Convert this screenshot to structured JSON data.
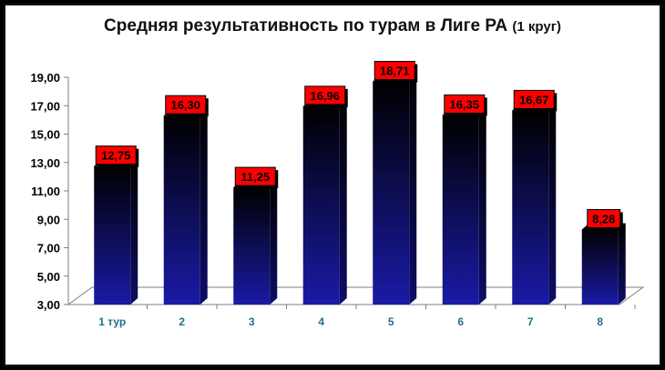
{
  "chart_data": {
    "type": "bar",
    "title": "Средняя результативность по турам в Лиге РА",
    "subtitle": "(1 круг)",
    "categories": [
      "1 тур",
      "2",
      "3",
      "4",
      "5",
      "6",
      "7",
      "8"
    ],
    "values": [
      12.75,
      16.3,
      11.25,
      16.96,
      18.71,
      16.35,
      16.67,
      8.28
    ],
    "data_labels": [
      "12,75",
      "16,30",
      "11,25",
      "16,96",
      "18,71",
      "16,35",
      "16,67",
      "8,28"
    ],
    "ylim": [
      3,
      19
    ],
    "yticks": [
      "3,00",
      "5,00",
      "7,00",
      "9,00",
      "11,00",
      "13,00",
      "15,00",
      "17,00",
      "19,00"
    ],
    "xlabel": "",
    "ylabel": "",
    "grid": false,
    "legend": "none",
    "colors": {
      "bar_top": "#000000",
      "bar_bottom": "#1a1aa6",
      "label_bg": "#ff0000",
      "x_tick": "#1f6f8b"
    }
  }
}
